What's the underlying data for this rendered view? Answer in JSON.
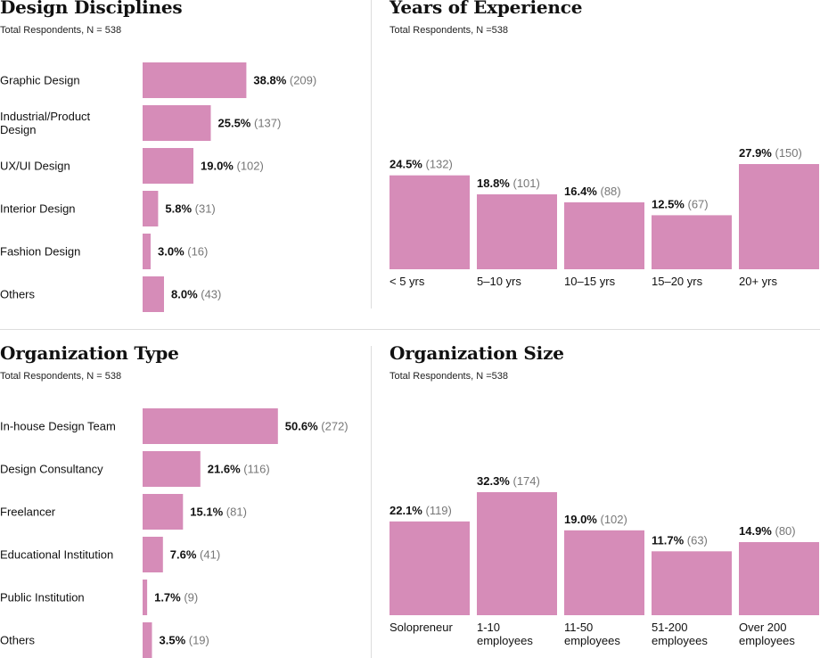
{
  "colors": {
    "bar": "#d68cb8",
    "pct": "#111111",
    "count": "#777777",
    "label": "#111111"
  },
  "chart_data": [
    {
      "id": "disciplines",
      "type": "bar",
      "orientation": "horizontal",
      "title": "Design Disciplines",
      "subtitle": "Total Respondents, N = 538",
      "categories": [
        [
          "Graphic Design"
        ],
        [
          "Industrial/Product",
          "Design"
        ],
        [
          "UX/UI Design"
        ],
        [
          "Interior Design"
        ],
        [
          "Fashion Design"
        ],
        [
          "Others"
        ]
      ],
      "values": [
        38.8,
        25.5,
        19.0,
        5.8,
        3.0,
        8.0
      ],
      "value_labels": [
        "38.8%",
        "25.5%",
        "19.0%",
        "5.8%",
        "3.0%",
        "8.0%"
      ],
      "counts": [
        "(209)",
        "(137)",
        "(102)",
        "(31)",
        "(16)",
        "(43)"
      ],
      "xlim": [
        0,
        100
      ],
      "grid": false
    },
    {
      "id": "experience",
      "type": "bar",
      "orientation": "vertical",
      "title": "Years of Experience",
      "subtitle": "Total Respondents, N =538",
      "categories": [
        [
          "< 5 yrs"
        ],
        [
          "5–10 yrs"
        ],
        [
          "10–15 yrs"
        ],
        [
          "15–20 yrs"
        ],
        [
          "20+ yrs"
        ]
      ],
      "values": [
        24.5,
        18.8,
        16.4,
        12.5,
        27.9
      ],
      "value_labels": [
        "24.5%",
        "18.8%",
        "16.4%",
        "12.5%",
        "27.9%"
      ],
      "counts": [
        "(132)",
        "(101)",
        "(88)",
        "(67)",
        "(150)"
      ],
      "ylim": [
        0,
        27.9
      ],
      "grid": false
    },
    {
      "id": "org-type",
      "type": "bar",
      "orientation": "horizontal",
      "title": "Organization Type",
      "subtitle": "Total Respondents, N = 538",
      "categories": [
        [
          "In-house Design Team"
        ],
        [
          "Design Consultancy"
        ],
        [
          "Freelancer"
        ],
        [
          "Educational Institution"
        ],
        [
          "Public Institution"
        ],
        [
          "Others"
        ]
      ],
      "values": [
        50.6,
        21.6,
        15.1,
        7.6,
        1.7,
        3.5
      ],
      "value_labels": [
        "50.6%",
        "21.6%",
        "15.1%",
        "7.6%",
        "1.7%",
        "3.5%"
      ],
      "counts": [
        "(272)",
        "(116)",
        "(81)",
        "(41)",
        "(9)",
        "(19)"
      ],
      "xlim": [
        0,
        100
      ],
      "grid": false
    },
    {
      "id": "org-size",
      "type": "bar",
      "orientation": "vertical",
      "title": "Organization Size",
      "subtitle": "Total Respondents, N =538",
      "categories": [
        [
          "Solopreneur"
        ],
        [
          "1-10",
          "employees"
        ],
        [
          "11-50",
          "employees"
        ],
        [
          "51-200",
          "employees"
        ],
        [
          "Over 200",
          "employees"
        ]
      ],
      "values": [
        22.1,
        32.3,
        19.0,
        11.7,
        14.9
      ],
      "value_labels": [
        "22.1%",
        "32.3%",
        "19.0%",
        "11.7%",
        "14.9%"
      ],
      "counts": [
        "(119)",
        "(174)",
        "(102)",
        "(63)",
        "(80)"
      ],
      "ylim": [
        0,
        32.3
      ],
      "grid": false
    }
  ]
}
